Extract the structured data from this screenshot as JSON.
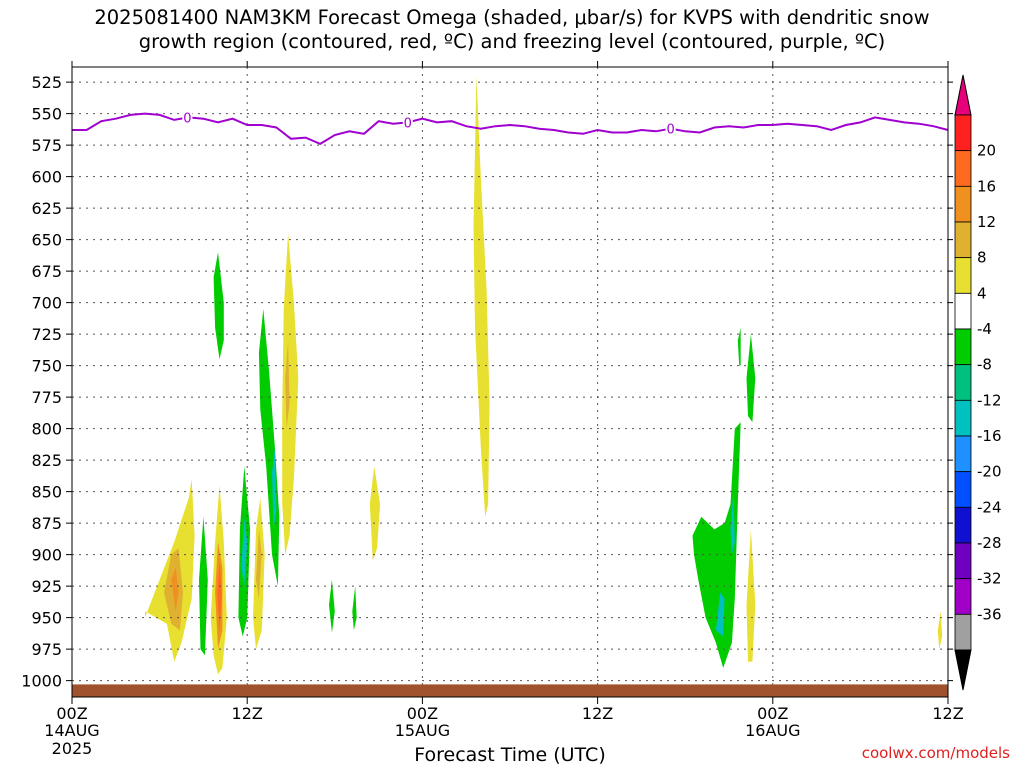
{
  "title_line1": "2025081400 NAM3KM Forecast Omega (shaded, μbar/s) for KVPS with dendritic snow",
  "title_line2": "growth region (contoured, red, ºC) and freezing level (contoured, purple, ºC)",
  "credit": "coolwx.com/models",
  "chart_data": {
    "type": "heatmap",
    "title": "2025081400 NAM3KM Forecast Omega (shaded, μbar/s) for KVPS with dendritic snow growth region (contoured, red, ºC) and freezing level (contoured, purple, ºC)",
    "xlabel": "Forecast Time (UTC)",
    "ylabel": "",
    "x_range_hours": [
      0,
      60
    ],
    "x_ticks": [
      {
        "hour": 0,
        "label": "00Z",
        "date": "14AUG",
        "year": "2025"
      },
      {
        "hour": 12,
        "label": "12Z",
        "date": "",
        "year": ""
      },
      {
        "hour": 24,
        "label": "00Z",
        "date": "15AUG",
        "year": ""
      },
      {
        "hour": 36,
        "label": "12Z",
        "date": "",
        "year": ""
      },
      {
        "hour": 48,
        "label": "00Z",
        "date": "16AUG",
        "year": ""
      },
      {
        "hour": 60,
        "label": "12Z",
        "date": "",
        "year": ""
      }
    ],
    "y_ticks_hpa": [
      525,
      550,
      575,
      600,
      625,
      650,
      675,
      700,
      725,
      750,
      775,
      800,
      825,
      850,
      875,
      900,
      925,
      950,
      975,
      1000
    ],
    "y_range_hpa": [
      513,
      1013
    ],
    "grid": true,
    "colorbar": {
      "labels": [
        "20",
        "16",
        "12",
        "8",
        "4",
        "-4",
        "-8",
        "-12",
        "-16",
        "-20",
        "-24",
        "-28",
        "-32",
        "-36"
      ],
      "colors": [
        "#e6007a",
        "#ff2020",
        "#ff6a20",
        "#f09020",
        "#e0b030",
        "#e8e030",
        "#ffffff",
        "#00cc00",
        "#00c080",
        "#00c0c0",
        "#1e90ff",
        "#0050ff",
        "#1010d0",
        "#7000c0",
        "#a000c8",
        "#a0a0a0",
        "#000000"
      ]
    },
    "freezing_level": {
      "color": "#a000d0",
      "label": "0",
      "points": [
        [
          0,
          563
        ],
        [
          1,
          563
        ],
        [
          2,
          556
        ],
        [
          3,
          554
        ],
        [
          4,
          551
        ],
        [
          5,
          550
        ],
        [
          6,
          551
        ],
        [
          7,
          555
        ],
        [
          8,
          553
        ],
        [
          9,
          554
        ],
        [
          10,
          557
        ],
        [
          11,
          554
        ],
        [
          12,
          559
        ],
        [
          13,
          559
        ],
        [
          14,
          561
        ],
        [
          15,
          570
        ],
        [
          16,
          569
        ],
        [
          17,
          574
        ],
        [
          18,
          567
        ],
        [
          19,
          564
        ],
        [
          20,
          566
        ],
        [
          21,
          556
        ],
        [
          22,
          558
        ],
        [
          23,
          557
        ],
        [
          24,
          554
        ],
        [
          25,
          557
        ],
        [
          26,
          556
        ],
        [
          27,
          560
        ],
        [
          28,
          562
        ],
        [
          29,
          560
        ],
        [
          30,
          559
        ],
        [
          31,
          560
        ],
        [
          32,
          562
        ],
        [
          33,
          563
        ],
        [
          34,
          565
        ],
        [
          35,
          566
        ],
        [
          36,
          563
        ],
        [
          37,
          565
        ],
        [
          38,
          565
        ],
        [
          39,
          563
        ],
        [
          40,
          564
        ],
        [
          41,
          562
        ],
        [
          42,
          564
        ],
        [
          43,
          565
        ],
        [
          44,
          561
        ],
        [
          45,
          560
        ],
        [
          46,
          561
        ],
        [
          47,
          559
        ],
        [
          48,
          559
        ],
        [
          49,
          558
        ],
        [
          50,
          559
        ],
        [
          51,
          560
        ],
        [
          52,
          563
        ],
        [
          53,
          559
        ],
        [
          54,
          557
        ],
        [
          55,
          553
        ],
        [
          56,
          555
        ],
        [
          57,
          557
        ],
        [
          58,
          558
        ],
        [
          59,
          560
        ],
        [
          60,
          563
        ]
      ],
      "label_hours": [
        7.9,
        23,
        41
      ]
    },
    "omega_areas": [
      {
        "value": 4,
        "points": [
          [
            5,
            950
          ],
          [
            6,
            920
          ],
          [
            7,
            890
          ],
          [
            8,
            855
          ],
          [
            8.2,
            840
          ],
          [
            8.4,
            885
          ],
          [
            8.2,
            935
          ],
          [
            7.5,
            970
          ],
          [
            7,
            985
          ],
          [
            6.5,
            955
          ],
          [
            5,
            945
          ]
        ]
      },
      {
        "value": 8,
        "points": [
          [
            6.3,
            930
          ],
          [
            6.8,
            900
          ],
          [
            7.3,
            895
          ],
          [
            7.6,
            930
          ],
          [
            7.4,
            960
          ],
          [
            6.8,
            955
          ]
        ]
      },
      {
        "value": 12,
        "points": [
          [
            6.8,
            920
          ],
          [
            7.1,
            910
          ],
          [
            7.3,
            930
          ],
          [
            7.1,
            945
          ]
        ]
      },
      {
        "value": -4,
        "points": [
          [
            8.8,
            975
          ],
          [
            8.7,
            920
          ],
          [
            9,
            870
          ],
          [
            9.3,
            920
          ],
          [
            9.1,
            980
          ]
        ]
      },
      {
        "value": -4,
        "points": [
          [
            9.7,
            680
          ],
          [
            10,
            660
          ],
          [
            10.4,
            700
          ],
          [
            10.4,
            730
          ],
          [
            10.1,
            745
          ],
          [
            9.8,
            720
          ]
        ]
      },
      {
        "value": 4,
        "points": [
          [
            9.5,
            950
          ],
          [
            9.8,
            890
          ],
          [
            10.1,
            845
          ],
          [
            10.4,
            890
          ],
          [
            10.6,
            950
          ],
          [
            10.3,
            990
          ],
          [
            10,
            995
          ],
          [
            9.7,
            980
          ]
        ]
      },
      {
        "value": 12,
        "points": [
          [
            9.8,
            930
          ],
          [
            10,
            890
          ],
          [
            10.3,
            910
          ],
          [
            10.3,
            960
          ],
          [
            10,
            975
          ]
        ]
      },
      {
        "value": 16,
        "points": [
          [
            9.95,
            930
          ],
          [
            10.1,
            905
          ],
          [
            10.25,
            930
          ],
          [
            10.1,
            960
          ]
        ]
      },
      {
        "value": -4,
        "points": [
          [
            11.4,
            950
          ],
          [
            11.5,
            880
          ],
          [
            11.8,
            830
          ],
          [
            12.2,
            880
          ],
          [
            12,
            950
          ],
          [
            11.7,
            965
          ]
        ]
      },
      {
        "value": -12,
        "points": [
          [
            11.6,
            910
          ],
          [
            11.8,
            870
          ],
          [
            12,
            890
          ],
          [
            11.8,
            925
          ]
        ]
      },
      {
        "value": 4,
        "points": [
          [
            12.4,
            950
          ],
          [
            12.6,
            880
          ],
          [
            12.9,
            855
          ],
          [
            13.2,
            900
          ],
          [
            13,
            960
          ],
          [
            12.6,
            975
          ]
        ]
      },
      {
        "value": 8,
        "points": [
          [
            12.6,
            920
          ],
          [
            12.8,
            880
          ],
          [
            13,
            900
          ],
          [
            12.8,
            935
          ]
        ]
      },
      {
        "value": -4,
        "points": [
          [
            12.8,
            740
          ],
          [
            13.1,
            705
          ],
          [
            13.5,
            755
          ],
          [
            13.9,
            815
          ],
          [
            14.2,
            870
          ],
          [
            14.1,
            925
          ],
          [
            13.7,
            900
          ],
          [
            13.3,
            830
          ],
          [
            12.9,
            785
          ]
        ]
      },
      {
        "value": -12,
        "points": [
          [
            13.7,
            835
          ],
          [
            13.9,
            815
          ],
          [
            14,
            865
          ],
          [
            13.8,
            880
          ]
        ]
      },
      {
        "value": 4,
        "points": [
          [
            14.4,
            790
          ],
          [
            14.5,
            705
          ],
          [
            14.8,
            645
          ],
          [
            15.2,
            700
          ],
          [
            15.5,
            760
          ],
          [
            15.2,
            840
          ],
          [
            14.9,
            885
          ],
          [
            14.6,
            900
          ],
          [
            14.4,
            860
          ]
        ]
      },
      {
        "value": 8,
        "points": [
          [
            14.6,
            760
          ],
          [
            14.8,
            730
          ],
          [
            14.9,
            780
          ],
          [
            14.7,
            800
          ]
        ]
      },
      {
        "value": -4,
        "points": [
          [
            17.6,
            940
          ],
          [
            17.8,
            920
          ],
          [
            18,
            945
          ],
          [
            17.8,
            962
          ]
        ]
      },
      {
        "value": -4,
        "points": [
          [
            19.2,
            945
          ],
          [
            19.4,
            925
          ],
          [
            19.5,
            950
          ],
          [
            19.3,
            960
          ]
        ]
      },
      {
        "value": 4,
        "points": [
          [
            20.4,
            860
          ],
          [
            20.7,
            830
          ],
          [
            21.1,
            860
          ],
          [
            20.9,
            895
          ],
          [
            20.6,
            905
          ]
        ]
      },
      {
        "value": 4,
        "points": [
          [
            27.5,
            640
          ],
          [
            27.7,
            520
          ],
          [
            28,
            600
          ],
          [
            28.4,
            690
          ],
          [
            28.6,
            780
          ],
          [
            28.5,
            860
          ],
          [
            28.3,
            870
          ],
          [
            28,
            815
          ],
          [
            27.6,
            720
          ]
        ]
      },
      {
        "value": -4,
        "points": [
          [
            42.5,
            885
          ],
          [
            43.1,
            870
          ],
          [
            44,
            880
          ],
          [
            44.7,
            875
          ],
          [
            45.1,
            860
          ],
          [
            45.4,
            800
          ],
          [
            45.8,
            795
          ],
          [
            45.6,
            860
          ],
          [
            45.4,
            935
          ],
          [
            45.2,
            970
          ],
          [
            44.6,
            990
          ],
          [
            44.1,
            970
          ],
          [
            43.4,
            950
          ],
          [
            42.9,
            920
          ],
          [
            42.6,
            900
          ]
        ]
      },
      {
        "value": -12,
        "points": [
          [
            44.1,
            960
          ],
          [
            44.4,
            930
          ],
          [
            44.7,
            935
          ],
          [
            44.6,
            965
          ]
        ]
      },
      {
        "value": -12,
        "points": [
          [
            45.1,
            880
          ],
          [
            45.3,
            850
          ],
          [
            45.4,
            890
          ],
          [
            45.2,
            900
          ]
        ]
      },
      {
        "value": -4,
        "points": [
          [
            45.6,
            730
          ],
          [
            45.8,
            720
          ],
          [
            45.8,
            750
          ],
          [
            45.7,
            750
          ]
        ]
      },
      {
        "value": -4,
        "points": [
          [
            46.2,
            760
          ],
          [
            46.5,
            725
          ],
          [
            46.8,
            760
          ],
          [
            46.6,
            795
          ],
          [
            46.3,
            790
          ]
        ]
      },
      {
        "value": 4,
        "points": [
          [
            46.2,
            940
          ],
          [
            46.5,
            880
          ],
          [
            46.8,
            940
          ],
          [
            46.6,
            985
          ],
          [
            46.3,
            985
          ]
        ]
      },
      {
        "value": 4,
        "points": [
          [
            59.3,
            960
          ],
          [
            59.5,
            945
          ],
          [
            59.6,
            965
          ],
          [
            59.4,
            975
          ]
        ]
      }
    ],
    "ground": {
      "color": "#a0522d",
      "top_hpa": 1003
    }
  },
  "axis": {
    "xlabel": "Forecast Time (UTC)"
  }
}
